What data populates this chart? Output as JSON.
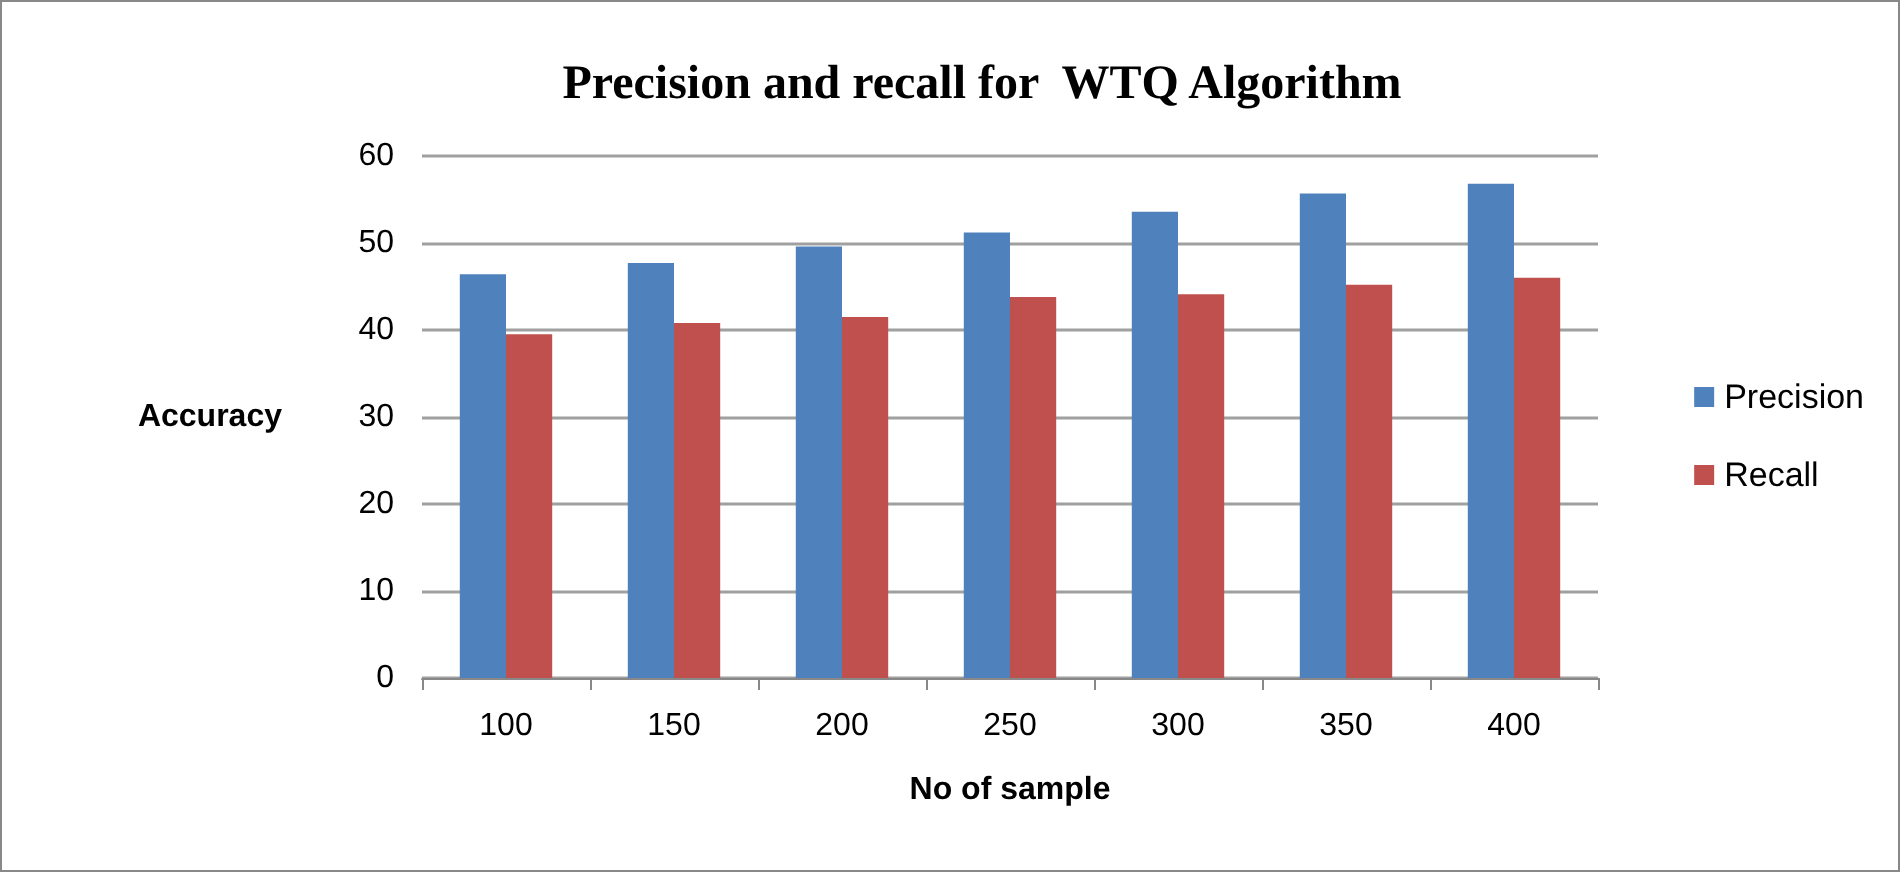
{
  "chart_data": {
    "type": "bar",
    "title": "Precision and recall for  WTQ Algorithm",
    "xlabel": "No of sample",
    "ylabel": "Accuracy",
    "categories": [
      "100",
      "150",
      "200",
      "250",
      "300",
      "350",
      "400"
    ],
    "series": [
      {
        "name": "Precision",
        "color": "#4f81bd",
        "values": [
          46.4,
          47.7,
          49.6,
          51.2,
          53.6,
          55.7,
          56.8
        ]
      },
      {
        "name": "Recall",
        "color": "#c0504d",
        "values": [
          39.5,
          40.8,
          41.5,
          43.8,
          44.1,
          45.2,
          46.0
        ]
      }
    ],
    "ylim": [
      0,
      60
    ],
    "yticks": [
      0,
      10,
      20,
      30,
      40,
      50,
      60
    ],
    "grid": "y",
    "legend": "right"
  }
}
